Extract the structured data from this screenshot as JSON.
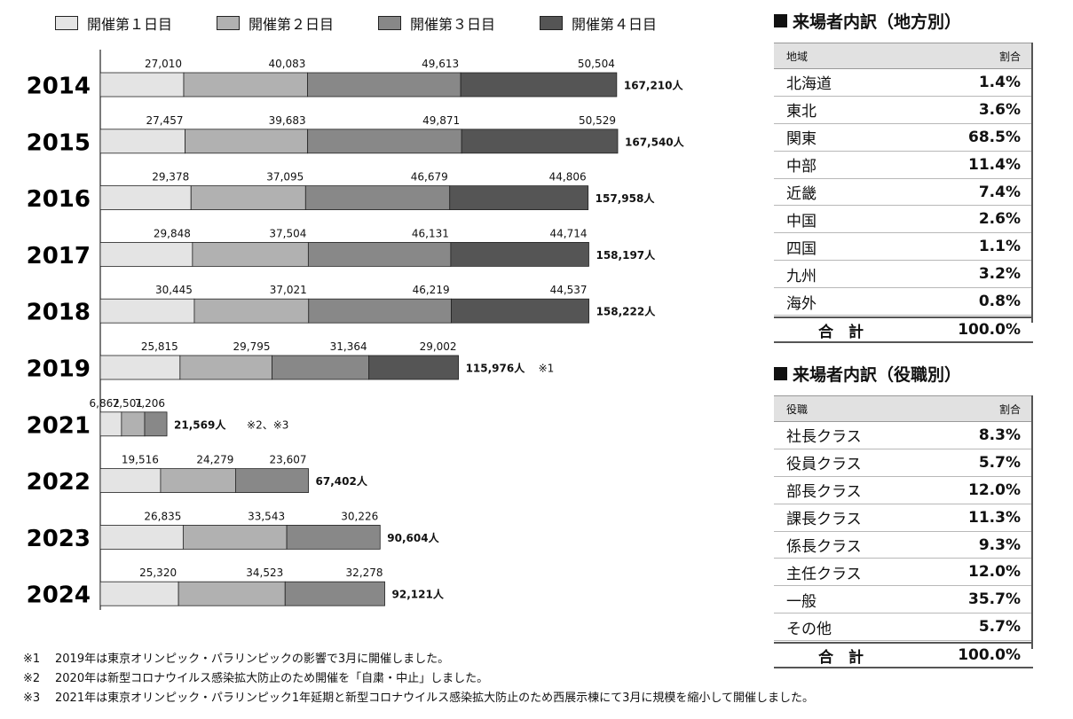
{
  "legend": [
    {
      "label": "開催第１日目",
      "color": "#e4e4e4"
    },
    {
      "label": "開催第２日目",
      "color": "#b1b1b1"
    },
    {
      "label": "開催第３日目",
      "color": "#888888"
    },
    {
      "label": "開催第４日目",
      "color": "#555555"
    }
  ],
  "chart_data": {
    "type": "bar",
    "orientation": "horizontal",
    "stacked": true,
    "categories": [
      "2014",
      "2015",
      "2016",
      "2017",
      "2018",
      "2019",
      "2021",
      "2022",
      "2023",
      "2024"
    ],
    "series": [
      {
        "name": "開催第１日目",
        "values": [
          27010,
          27457,
          29378,
          29848,
          30445,
          25815,
          6862,
          19516,
          26835,
          25320
        ],
        "labels": [
          "27,010",
          "27,457",
          "29,378",
          "29,848",
          "30,445",
          "25,815",
          "6,862",
          "19,516",
          "26,835",
          "25,320"
        ]
      },
      {
        "name": "開催第２日目",
        "values": [
          40083,
          39683,
          37095,
          37504,
          37021,
          29795,
          7501,
          24279,
          33543,
          34523
        ],
        "labels": [
          "40,083",
          "39,683",
          "37,095",
          "37,504",
          "37,021",
          "29,795",
          "7,501",
          "24,279",
          "33,543",
          "34,523"
        ]
      },
      {
        "name": "開催第３日目",
        "values": [
          49613,
          49871,
          46679,
          46131,
          46219,
          31364,
          7206,
          23607,
          30226,
          32278
        ],
        "labels": [
          "49,613",
          "49,871",
          "46,679",
          "46,131",
          "46,219",
          "31,364",
          "7,206",
          "23,607",
          "30,226",
          "32,278"
        ]
      },
      {
        "name": "開催第４日目",
        "values": [
          50504,
          50529,
          44806,
          44714,
          44537,
          29002,
          null,
          null,
          null,
          null
        ],
        "labels": [
          "50,504",
          "50,529",
          "44,806",
          "44,714",
          "44,537",
          "29,002",
          null,
          null,
          null,
          null
        ]
      }
    ],
    "totals": [
      "167,210人",
      "167,540人",
      "157,958人",
      "158,197人",
      "158,222人",
      "115,976人",
      "21,569人",
      "67,402人",
      "90,604人",
      "92,121人"
    ],
    "notes": [
      null,
      null,
      null,
      null,
      null,
      "※1",
      "※2、※3",
      null,
      null,
      null
    ],
    "xlim": [
      0,
      167540
    ]
  },
  "region_table": {
    "title": "来場者内訳（地方別）",
    "header": {
      "label": "地域",
      "value": "割合"
    },
    "rows": [
      {
        "label": "北海道",
        "value": "1.4%"
      },
      {
        "label": "東北",
        "value": "3.6%"
      },
      {
        "label": "関東",
        "value": "68.5%"
      },
      {
        "label": "中部",
        "value": "11.4%"
      },
      {
        "label": "近畿",
        "value": "7.4%"
      },
      {
        "label": "中国",
        "value": "2.6%"
      },
      {
        "label": "四国",
        "value": "1.1%"
      },
      {
        "label": "九州",
        "value": "3.2%"
      },
      {
        "label": "海外",
        "value": "0.8%"
      }
    ],
    "total": {
      "label": "合　計",
      "value": "100.0%"
    }
  },
  "position_table": {
    "title": "来場者内訳（役職別）",
    "header": {
      "label": "役職",
      "value": "割合"
    },
    "rows": [
      {
        "label": "社長クラス",
        "value": "8.3%"
      },
      {
        "label": "役員クラス",
        "value": "5.7%"
      },
      {
        "label": "部長クラス",
        "value": "12.0%"
      },
      {
        "label": "課長クラス",
        "value": "11.3%"
      },
      {
        "label": "係長クラス",
        "value": "9.3%"
      },
      {
        "label": "主任クラス",
        "value": "12.0%"
      },
      {
        "label": "一般",
        "value": "35.7%"
      },
      {
        "label": "その他",
        "value": "5.7%"
      }
    ],
    "total": {
      "label": "合　計",
      "value": "100.0%"
    }
  },
  "footnotes": [
    {
      "mark": "※1",
      "text": "2019年は東京オリンピック・パラリンピックの影響で3月に開催しました。"
    },
    {
      "mark": "※2",
      "text": "2020年は新型コロナウイルス感染拡大防止のため開催を「自粛・中止」しました。"
    },
    {
      "mark": "※3",
      "text": "2021年は東京オリンピック・パラリンピック1年延期と新型コロナウイルス感染拡大防止のため西展示棟にて3月に規模を縮小して開催しました。"
    }
  ]
}
